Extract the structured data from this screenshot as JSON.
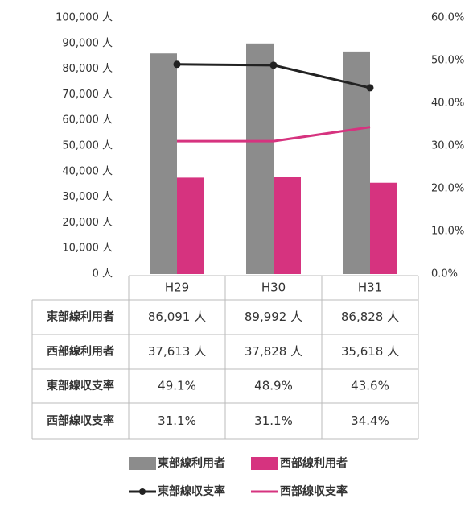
{
  "chart_data": {
    "type": "bar",
    "categories": [
      "H29",
      "H30",
      "H31"
    ],
    "series": [
      {
        "name": "東部線利用者",
        "type": "bar",
        "color": "#8c8c8c",
        "values": [
          86091,
          89992,
          86828
        ],
        "value_labels": [
          "86,091 人",
          "89,992 人",
          "86,828 人"
        ]
      },
      {
        "name": "西部線利用者",
        "type": "bar",
        "color": "#d6337f",
        "values": [
          37613,
          37828,
          35618
        ],
        "value_labels": [
          "37,613 人",
          "37,828 人",
          "35,618 人"
        ]
      },
      {
        "name": "東部線収支率",
        "type": "line",
        "axis": "y2",
        "color": "#222222",
        "marker": true,
        "values": [
          49.1,
          48.9,
          43.6
        ],
        "value_labels": [
          "49.1%",
          "48.9%",
          "43.6%"
        ]
      },
      {
        "name": "西部線収支率",
        "type": "line",
        "axis": "y2",
        "color": "#d6337f",
        "marker": false,
        "values": [
          31.1,
          31.1,
          34.4
        ],
        "value_labels": [
          "31.1%",
          "31.1%",
          "34.4%"
        ]
      }
    ],
    "ylim": [
      0,
      100000
    ],
    "yticks": [
      {
        "value": 0,
        "label": "0 人"
      },
      {
        "value": 10000,
        "label": "10,000 人"
      },
      {
        "value": 20000,
        "label": "20,000 人"
      },
      {
        "value": 30000,
        "label": "30,000 人"
      },
      {
        "value": 40000,
        "label": "40,000 人"
      },
      {
        "value": 50000,
        "label": "50,000 人"
      },
      {
        "value": 60000,
        "label": "60,000 人"
      },
      {
        "value": 70000,
        "label": "70,000 人"
      },
      {
        "value": 80000,
        "label": "80,000 人"
      },
      {
        "value": 90000,
        "label": "90,000 人"
      },
      {
        "value": 100000,
        "label": "100,000 人"
      }
    ],
    "y2lim": [
      0,
      60
    ],
    "y2ticks": [
      {
        "value": 0,
        "label": "0.0%"
      },
      {
        "value": 10,
        "label": "10.0%"
      },
      {
        "value": 20,
        "label": "20.0%"
      },
      {
        "value": 30,
        "label": "30.0%"
      },
      {
        "value": 40,
        "label": "40.0%"
      },
      {
        "value": 50,
        "label": "50.0%"
      },
      {
        "value": 60,
        "label": "60.0%"
      }
    ],
    "grid": false
  }
}
